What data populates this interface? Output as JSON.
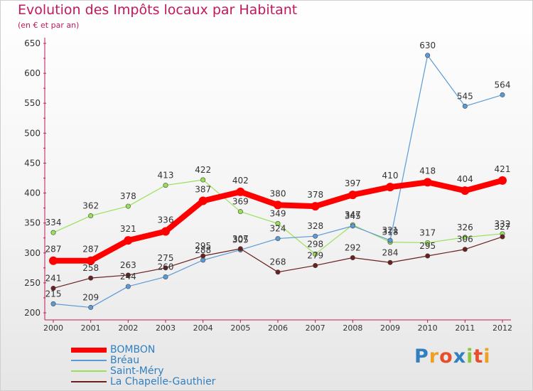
{
  "title": "Evolution des Impôts locaux par Habitant",
  "subtitle": "(en € et par an)",
  "brand": {
    "letters": [
      "P",
      "r",
      "o",
      "x",
      "i",
      "t",
      "i"
    ],
    "colors": [
      "#2f7fc1",
      "#f0a020",
      "#e84d2c",
      "#2f7fc1",
      "#8cc63f",
      "#e84d2c",
      "#f0a020"
    ]
  },
  "chart_data": {
    "type": "line",
    "x": [
      "2000",
      "2001",
      "2002",
      "2003",
      "2004",
      "2005",
      "2006",
      "2007",
      "2008",
      "2009",
      "2010",
      "2011",
      "2012"
    ],
    "ylim": [
      200,
      650
    ],
    "yticks": [
      "200",
      "250",
      "300",
      "350",
      "400",
      "450",
      "500",
      "550",
      "600",
      "650"
    ],
    "grid": false,
    "series": [
      {
        "name": "BOMBON",
        "color": "#ff0000",
        "values": [
          287,
          287,
          321,
          336,
          387,
          402,
          380,
          378,
          397,
          410,
          418,
          404,
          421
        ],
        "labels": [
          "287",
          "287",
          "321",
          "336",
          "387",
          "402",
          "380",
          "378",
          "397",
          "410",
          "418",
          "404",
          "421"
        ]
      },
      {
        "name": "Bréau",
        "color": "#5b9bd5",
        "values": [
          215,
          209,
          244,
          260,
          288,
          305,
          324,
          328,
          345,
          321,
          630,
          545,
          564
        ],
        "labels": [
          "215",
          "209",
          "244",
          "260",
          "288",
          "305",
          "324",
          "328",
          "345",
          "321",
          "630",
          "545",
          "564"
        ]
      },
      {
        "name": "Saint-Méry",
        "color": "#99e05a",
        "values": [
          334,
          362,
          378,
          413,
          422,
          369,
          349,
          298,
          347,
          318,
          317,
          326,
          332
        ],
        "labels": [
          "334",
          "362",
          "378",
          "413",
          "422",
          "369",
          "349",
          "298",
          "347",
          "318",
          "317",
          "326",
          "332"
        ]
      },
      {
        "name": "La Chapelle-Gauthier",
        "color": "#6b1f1f",
        "values": [
          241,
          258,
          263,
          275,
          295,
          307,
          268,
          279,
          292,
          284,
          295,
          306,
          327
        ],
        "labels": [
          "241",
          "258",
          "263",
          "275",
          "295",
          "307",
          "268",
          "279",
          "292",
          "284",
          "295",
          "306",
          "327"
        ]
      }
    ]
  }
}
